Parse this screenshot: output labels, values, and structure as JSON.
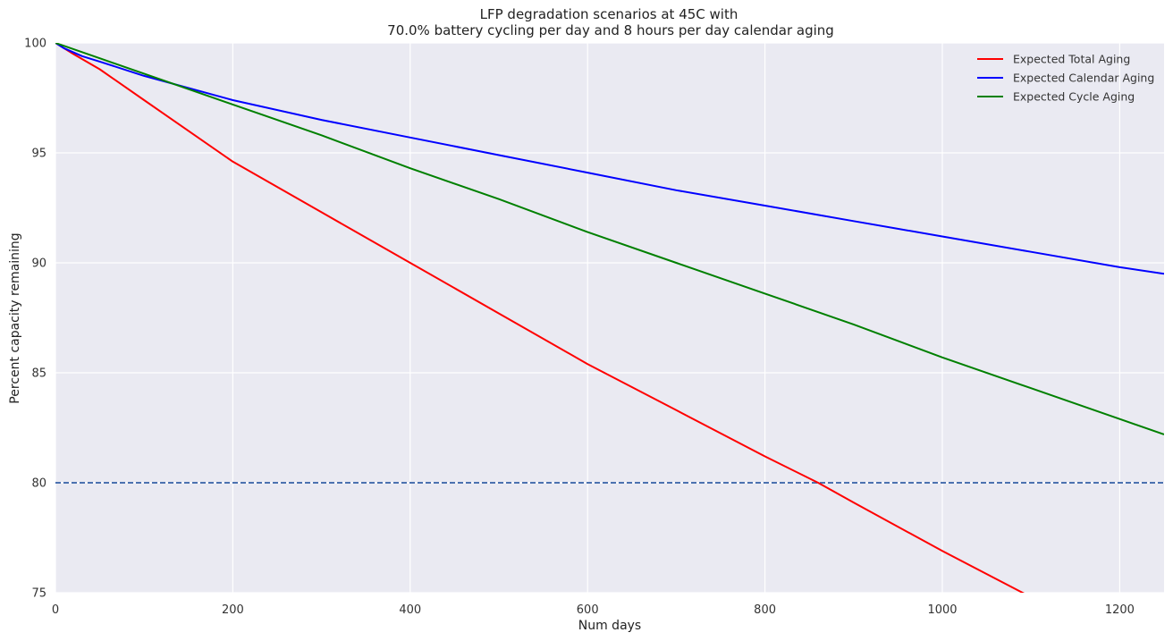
{
  "chart_data": {
    "type": "line",
    "title": "LFP degradation scenarios at 45C with",
    "subtitle": "70.0% battery cycling per day and 8 hours per day calendar aging",
    "xlabel": "Num days",
    "ylabel": "Percent capacity remaining",
    "xlim": [
      0,
      1250
    ],
    "ylim": [
      75,
      100
    ],
    "xticks": [
      "0",
      "200",
      "400",
      "600",
      "800",
      "1000",
      "1200"
    ],
    "yticks": [
      "75",
      "80",
      "85",
      "90",
      "95",
      "100"
    ],
    "grid": true,
    "legend_position": "top-right",
    "colors": {
      "background": "#eaeaf2",
      "grid": "#ffffff",
      "threshold": "#4c72b0"
    },
    "series": [
      {
        "name": "Expected Total Aging",
        "color": "#ff0000",
        "x": [
          0,
          20,
          50,
          100,
          200,
          300,
          400,
          500,
          600,
          700,
          800,
          860,
          900,
          1000,
          1100
        ],
        "y": [
          100,
          99.5,
          98.8,
          97.4,
          94.6,
          92.3,
          90.0,
          87.7,
          85.4,
          83.3,
          81.2,
          80.0,
          79.1,
          76.9,
          74.8
        ]
      },
      {
        "name": "Expected Calendar Aging",
        "color": "#0000ff",
        "x": [
          0,
          10,
          30,
          50,
          100,
          200,
          300,
          400,
          500,
          600,
          700,
          800,
          900,
          1000,
          1100,
          1200,
          1250
        ],
        "y": [
          100,
          99.75,
          99.4,
          99.15,
          98.5,
          97.4,
          96.5,
          95.7,
          94.9,
          94.1,
          93.3,
          92.6,
          91.9,
          91.2,
          90.5,
          89.8,
          89.5
        ]
      },
      {
        "name": "Expected Cycle Aging",
        "color": "#008000",
        "x": [
          0,
          50,
          100,
          200,
          300,
          400,
          500,
          600,
          700,
          800,
          900,
          1000,
          1100,
          1200,
          1250
        ],
        "y": [
          100,
          99.3,
          98.6,
          97.2,
          95.8,
          94.3,
          92.9,
          91.4,
          90.0,
          88.6,
          87.2,
          85.7,
          84.3,
          82.9,
          82.2
        ]
      }
    ],
    "reference_lines": [
      {
        "y": 80,
        "style": "dashed",
        "color": "#4c72b0"
      }
    ]
  }
}
